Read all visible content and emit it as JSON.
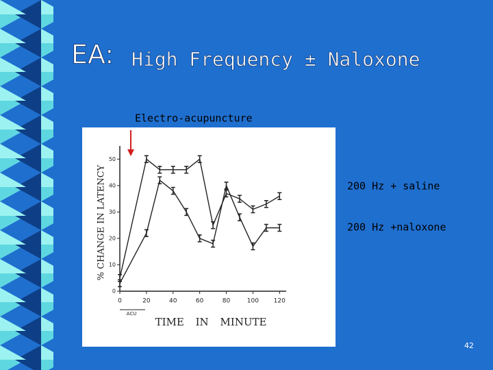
{
  "slide": {
    "title_prefix": "EA:",
    "title": "High Frequency ± Naloxone",
    "label": "Electro-acupuncture",
    "page_number": "42"
  },
  "chart_data": {
    "type": "line",
    "xlabel": "TIME IN MINUTE",
    "ylabel": "% CHANGE IN LATENCY",
    "annotation": "ACU",
    "x": [
      0,
      20,
      30,
      40,
      50,
      60,
      70,
      80,
      90,
      100,
      110,
      120
    ],
    "series": [
      {
        "name": "200 Hz + saline",
        "color": "#222222",
        "values": [
          5,
          50,
          46,
          46,
          46,
          50,
          25,
          37,
          35,
          31,
          33,
          36
        ]
      },
      {
        "name": "200 Hz +naloxone",
        "color": "#222222",
        "values": [
          3,
          22,
          42,
          38,
          30,
          20,
          18,
          40,
          28,
          17,
          24,
          24
        ]
      }
    ],
    "xlim": [
      0,
      125
    ],
    "xticks": [
      0,
      20,
      40,
      60,
      80,
      100,
      120
    ],
    "ylim": [
      0,
      55
    ],
    "yticks": [
      0,
      10,
      20,
      30,
      40,
      50
    ]
  }
}
